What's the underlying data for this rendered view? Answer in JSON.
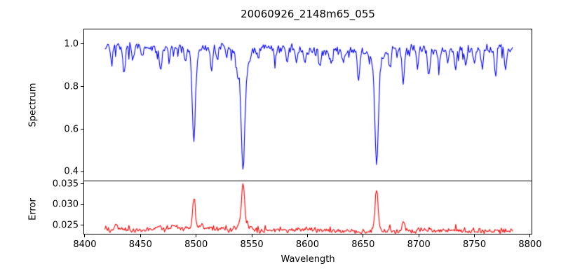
{
  "figure": {
    "title": "20060926_2148m65_055",
    "background": "#ffffff",
    "text_color": "#000000",
    "frame_color": "#000000"
  },
  "x_axis": {
    "label": "Wavelength",
    "tick_values": [
      8400,
      8450,
      8500,
      8550,
      8600,
      8650,
      8700,
      8750,
      8800
    ],
    "tick_labels": [
      "8400",
      "8450",
      "8500",
      "8550",
      "8600",
      "8650",
      "8700",
      "8750",
      "8800"
    ],
    "limits": [
      8399.4,
      8801.3
    ]
  },
  "chart_data": [
    {
      "panel": "spectrum",
      "type": "line",
      "ylabel": "Spectrum",
      "color": "#0000ff",
      "ylim": [
        0.355,
        1.072
      ],
      "ytick_values": [
        1.0,
        0.8,
        0.6,
        0.4
      ],
      "ytick_labels": [
        "1.0",
        "0.8",
        "0.6",
        "0.4"
      ],
      "x_start": 8418,
      "x_end": 8785,
      "x_step": 0.8,
      "continuum": {
        "base": 0.978,
        "waves": [
          [
            0.012,
            55,
            0
          ],
          [
            0.006,
            23,
            1.3
          ]
        ]
      },
      "noise": {
        "sigma": 0.011,
        "spike_prob": 0.07,
        "spike_base": 0.01,
        "spike_extra": 0.045,
        "seed": 20060926
      },
      "absorption_features": [
        [
          8424,
          0.05,
          0.8
        ],
        [
          8435,
          0.1,
          1.2
        ],
        [
          8443,
          0.05,
          0.8
        ],
        [
          8452,
          0.05,
          0.8
        ],
        [
          8468,
          0.11,
          1.1
        ],
        [
          8476,
          0.05,
          0.8
        ],
        [
          8490,
          0.06,
          0.9
        ],
        [
          8498,
          0.38,
          1.3
        ],
        [
          8498,
          0.07,
          3.5
        ],
        [
          8514,
          0.1,
          1.0
        ],
        [
          8519,
          0.06,
          0.8
        ],
        [
          8527,
          0.05,
          0.8
        ],
        [
          8536,
          0.05,
          0.8
        ],
        [
          8542.1,
          0.47,
          1.6
        ],
        [
          8542.1,
          0.12,
          5.0
        ],
        [
          8556,
          0.05,
          0.8
        ],
        [
          8571,
          0.07,
          0.9
        ],
        [
          8582,
          0.08,
          0.9
        ],
        [
          8590,
          0.05,
          0.8
        ],
        [
          8598,
          0.07,
          0.9
        ],
        [
          8611,
          0.07,
          0.9
        ],
        [
          8621,
          0.06,
          0.8
        ],
        [
          8632,
          0.05,
          0.8
        ],
        [
          8646,
          0.12,
          1.1
        ],
        [
          8662.1,
          0.46,
          1.4
        ],
        [
          8662.1,
          0.09,
          4.0
        ],
        [
          8674,
          0.09,
          0.9
        ],
        [
          8686,
          0.16,
          1.1
        ],
        [
          8699,
          0.08,
          0.9
        ],
        [
          8709,
          0.12,
          1.0
        ],
        [
          8718,
          0.08,
          0.9
        ],
        [
          8726,
          0.06,
          0.8
        ],
        [
          8733,
          0.11,
          1.0
        ],
        [
          8742,
          0.08,
          0.9
        ],
        [
          8750,
          0.06,
          0.8
        ],
        [
          8757,
          0.08,
          0.9
        ],
        [
          8769,
          0.12,
          1.0
        ],
        [
          8778,
          0.1,
          0.9
        ]
      ]
    },
    {
      "panel": "error",
      "type": "line",
      "ylabel": "Error",
      "color": "#ff0000",
      "ylim": [
        0.0228,
        0.0356
      ],
      "ytick_values": [
        0.035,
        0.03,
        0.025
      ],
      "ytick_labels": [
        "0.035",
        "0.030",
        "0.025"
      ],
      "x_start": 8418,
      "x_end": 8785,
      "x_step": 0.8,
      "baseline": {
        "base": 0.0238,
        "waves": [
          [
            0.0003,
            60,
            0
          ],
          [
            0.0002,
            17,
            2
          ]
        ]
      },
      "noise": {
        "sigma": 0.0003,
        "spike_prob": 0.06,
        "spike_base": 0.0004,
        "spike_extra": 0.0008,
        "seed": 2148
      },
      "emission_peaks": [
        [
          8428,
          0.0014,
          1.5
        ],
        [
          8466,
          0.0009,
          1.5
        ],
        [
          8480,
          0.001,
          1.0
        ],
        [
          8498,
          0.0062,
          1.0
        ],
        [
          8498,
          0.0012,
          2.5
        ],
        [
          8505,
          0.001,
          1.5
        ],
        [
          8542.1,
          0.009,
          1.4
        ],
        [
          8542.1,
          0.002,
          4.0
        ],
        [
          8662.1,
          0.0092,
          1.2
        ],
        [
          8662.1,
          0.0014,
          3.0
        ],
        [
          8674,
          0.0008,
          1.0
        ],
        [
          8686,
          0.0026,
          0.8
        ],
        [
          8733,
          0.0007,
          1.0
        ]
      ]
    }
  ]
}
